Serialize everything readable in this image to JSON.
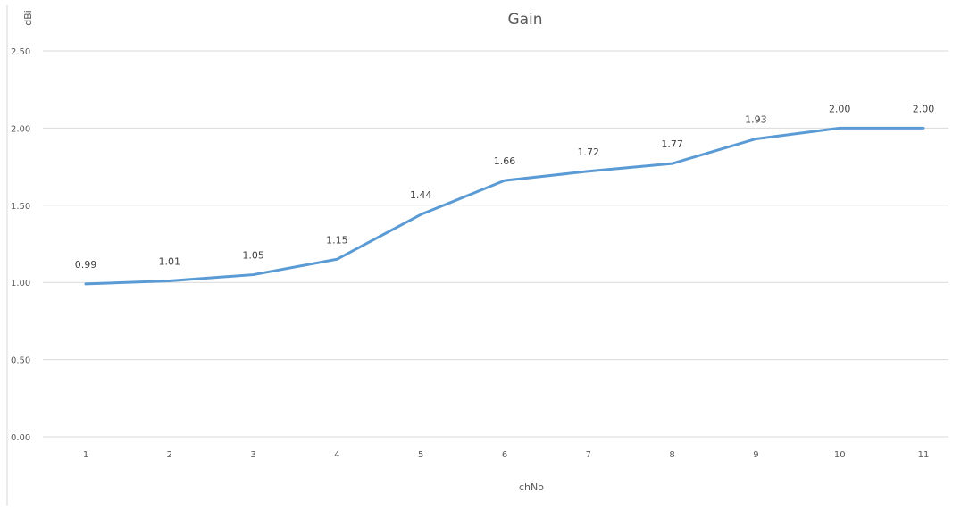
{
  "chart_data": {
    "type": "line",
    "title": "Gain",
    "xlabel": "chNo",
    "ylabel": "dBi",
    "categories": [
      "1",
      "2",
      "3",
      "4",
      "5",
      "6",
      "7",
      "8",
      "9",
      "10",
      "11"
    ],
    "series": [
      {
        "values": [
          0.99,
          1.01,
          1.05,
          1.15,
          1.44,
          1.66,
          1.72,
          1.77,
          1.93,
          2.0,
          2.0
        ],
        "color": "#5b9bd5"
      }
    ],
    "data_labels": [
      "0.99",
      "1.01",
      "1.05",
      "1.15",
      "1.44",
      "1.66",
      "1.72",
      "1.77",
      "1.93",
      "2.00",
      "2.00"
    ],
    "ylim": [
      0,
      2.5
    ],
    "yticks": [
      0,
      0.5,
      1.0,
      1.5,
      2.0,
      2.5
    ],
    "ytick_labels": [
      "0.00",
      "0.50",
      "1.00",
      "1.50",
      "2.00",
      "2.50"
    ],
    "grid": true,
    "legend": "none"
  }
}
